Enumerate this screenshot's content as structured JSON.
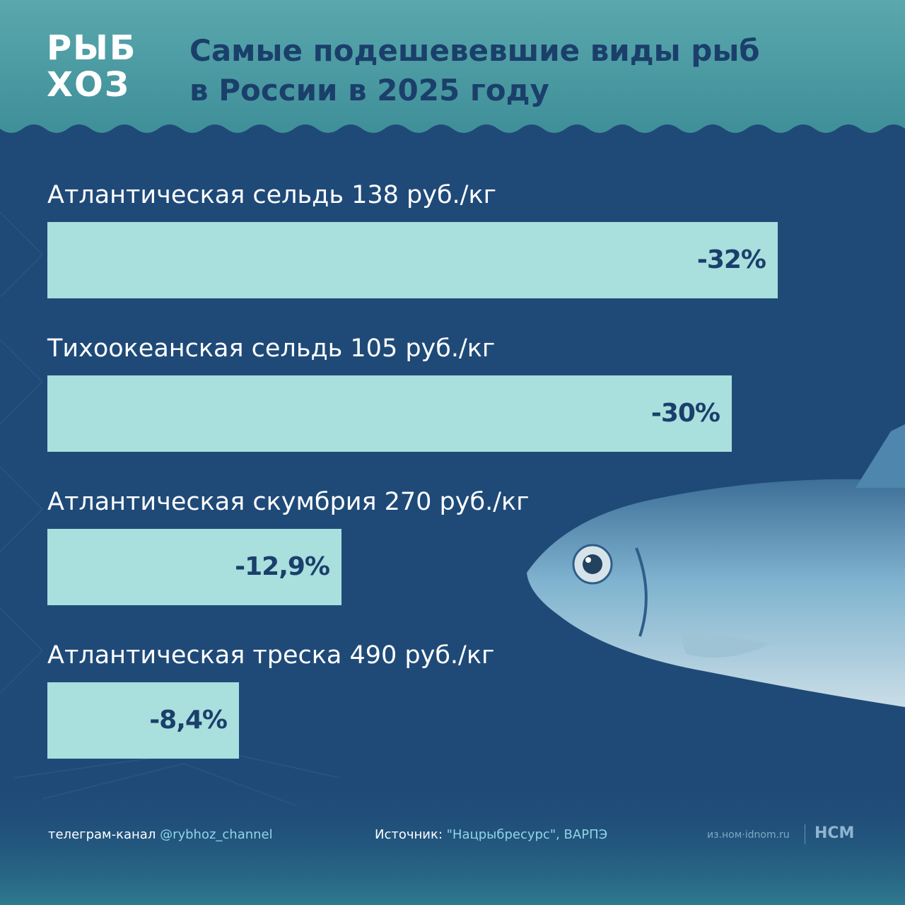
{
  "header": {
    "logo_line1": "РЫБ",
    "logo_line2": "ХОЗ",
    "title_line1": "Самые подешевевшие виды рыб",
    "title_line2": "в России в 2025 году"
  },
  "colors": {
    "background": "#1f4a78",
    "header_band": "#4e9fa5",
    "bar": "#a9dfdd",
    "title_text": "#1b3f6b",
    "accent_text": "#8fd6e6"
  },
  "chart_data": {
    "type": "bar",
    "orientation": "horizontal",
    "title": "Самые подешевевшие виды рыб в России в 2025 году",
    "unit": "%",
    "categories": [
      "Атлантическая сельдь 138 руб./кг",
      "Тихоокеанская сельдь 105 руб./кг",
      "Атлантическая скумбрия 270 руб./кг",
      "Атлантическая треска 490 руб./кг"
    ],
    "values": [
      -32,
      -30,
      -12.9,
      -8.4
    ],
    "value_labels": [
      "-32%",
      "-30%",
      "-12,9%",
      "-8,4%"
    ],
    "grid": false
  },
  "footer": {
    "channel_prefix": "телеграм-канал ",
    "channel_handle": "@rybhoz_channel",
    "source_prefix": "Источник: ",
    "source_text": "\"Нацрыбресурс\", ВАРПЭ",
    "site_text": "из.ном·idnom.ru",
    "brand": "НСМ"
  }
}
